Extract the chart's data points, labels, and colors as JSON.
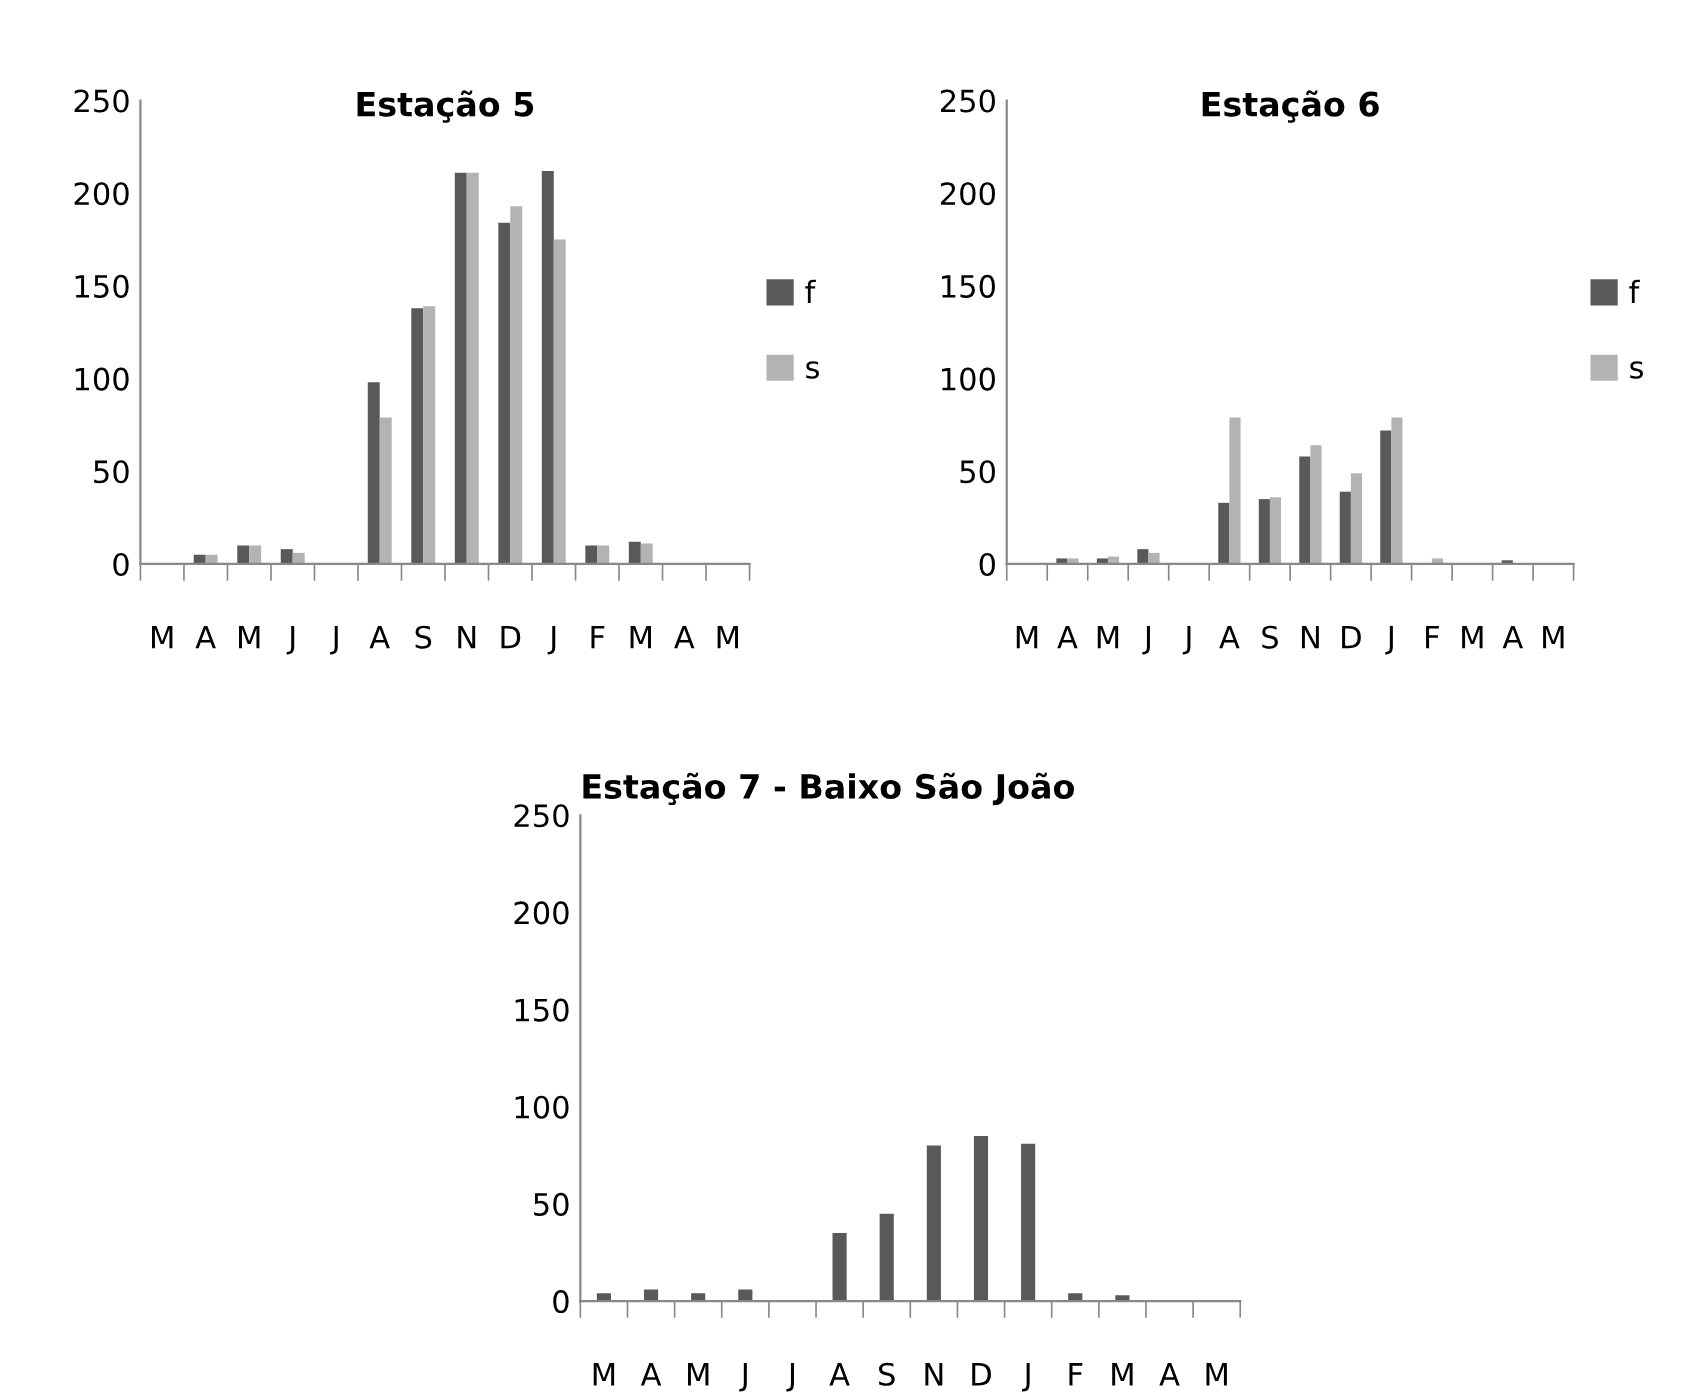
{
  "chart_data": [
    {
      "type": "bar",
      "title": "Estação 5",
      "categories": [
        "M",
        "A",
        "M",
        "J",
        "J",
        "A",
        "S",
        "N",
        "D",
        "J",
        "F",
        "M",
        "A",
        "M"
      ],
      "series": [
        {
          "name": "f",
          "color": "#595959",
          "values": [
            0,
            5,
            10,
            8,
            0,
            98,
            138,
            211,
            184,
            212,
            10,
            12,
            0,
            0
          ]
        },
        {
          "name": "s",
          "color": "#b3b3b3",
          "values": [
            0,
            5,
            10,
            6,
            0,
            79,
            139,
            211,
            193,
            175,
            10,
            11,
            0,
            0
          ]
        }
      ],
      "ylim": [
        0,
        250
      ],
      "yticks": [
        0,
        50,
        100,
        150,
        200,
        250
      ],
      "grid": false,
      "legend": "right"
    },
    {
      "type": "bar",
      "title": "Estação 6",
      "categories": [
        "M",
        "A",
        "M",
        "J",
        "J",
        "A",
        "S",
        "N",
        "D",
        "J",
        "F",
        "M",
        "A",
        "M"
      ],
      "series": [
        {
          "name": "f",
          "color": "#595959",
          "values": [
            0,
            3,
            3,
            8,
            0,
            33,
            35,
            58,
            39,
            72,
            0,
            0,
            2,
            0
          ]
        },
        {
          "name": "s",
          "color": "#b3b3b3",
          "values": [
            0,
            3,
            4,
            6,
            0,
            79,
            36,
            64,
            49,
            79,
            3,
            0,
            0,
            0
          ]
        }
      ],
      "ylim": [
        0,
        250
      ],
      "yticks": [
        0,
        50,
        100,
        150,
        200,
        250
      ],
      "grid": false,
      "legend": "right"
    },
    {
      "type": "bar",
      "title": "Estação 7 - Baixo São João",
      "categories": [
        "M",
        "A",
        "M",
        "J",
        "J",
        "A",
        "S",
        "N",
        "D",
        "J",
        "F",
        "M",
        "A",
        "M"
      ],
      "series": [
        {
          "color": "#595959",
          "values": [
            4,
            6,
            4,
            6,
            0,
            35,
            45,
            80,
            85,
            81,
            4,
            3,
            0,
            0
          ]
        }
      ],
      "ylim": [
        0,
        250
      ],
      "yticks": [
        0,
        50,
        100,
        150,
        200,
        250
      ],
      "grid": false,
      "legend": false
    }
  ]
}
